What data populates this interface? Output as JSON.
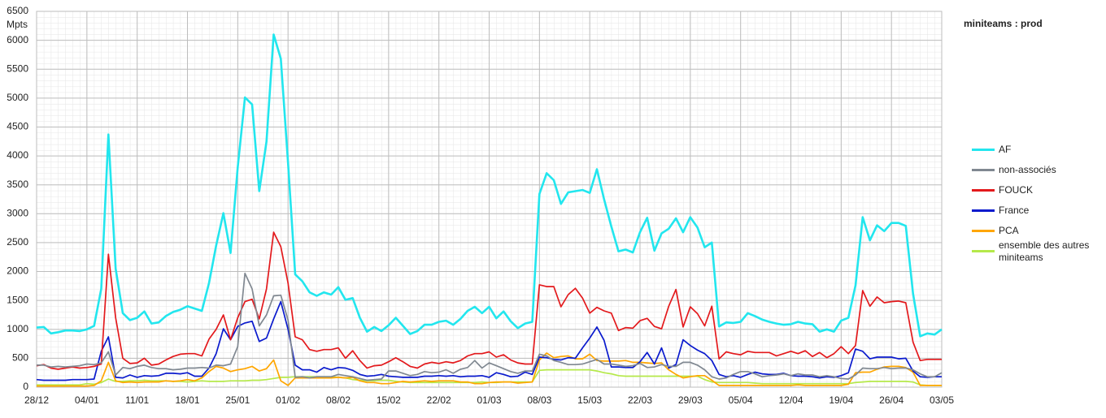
{
  "chart_data": {
    "type": "line",
    "title": "miniteams : prod",
    "y_label": "Mpts",
    "categories": [
      "28/12",
      null,
      null,
      null,
      null,
      null,
      null,
      "04/01",
      null,
      null,
      null,
      null,
      null,
      null,
      "11/01",
      null,
      null,
      null,
      null,
      null,
      null,
      "18/01",
      null,
      null,
      null,
      null,
      null,
      null,
      "25/01",
      null,
      null,
      null,
      null,
      null,
      null,
      "01/02",
      null,
      null,
      null,
      null,
      null,
      null,
      "08/02",
      null,
      null,
      null,
      null,
      null,
      null,
      "15/02",
      null,
      null,
      null,
      null,
      null,
      null,
      "22/02",
      null,
      null,
      null,
      null,
      null,
      null,
      "01/03",
      null,
      null,
      null,
      null,
      null,
      null,
      "08/03",
      null,
      null,
      null,
      null,
      null,
      null,
      "15/03",
      null,
      null,
      null,
      null,
      null,
      null,
      "22/03",
      null,
      null,
      null,
      null,
      null,
      null,
      "29/03",
      null,
      null,
      null,
      null,
      null,
      null,
      "05/04",
      null,
      null,
      null,
      null,
      null,
      null,
      "12/04",
      null,
      null,
      null,
      null,
      null,
      null,
      "19/04",
      null,
      null,
      null,
      null,
      null,
      null,
      "26/04",
      null,
      null,
      null,
      null,
      null,
      null,
      "03/05"
    ],
    "ylim": [
      0,
      6500
    ],
    "yticks": [
      0,
      500,
      1000,
      1500,
      2000,
      2500,
      3000,
      3500,
      4000,
      4500,
      5000,
      5500,
      6000,
      6500
    ],
    "grid": true,
    "series": [
      {
        "name": "AF",
        "color": "#22e6ee",
        "values": [
          1030,
          1040,
          930,
          950,
          980,
          980,
          970,
          1000,
          1060,
          1700,
          4370,
          2050,
          1280,
          1160,
          1200,
          1310,
          1100,
          1120,
          1230,
          1300,
          1340,
          1400,
          1360,
          1320,
          1800,
          2450,
          3010,
          2320,
          3800,
          5010,
          4890,
          3390,
          4250,
          6100,
          5680,
          3880,
          1950,
          1830,
          1640,
          1580,
          1640,
          1600,
          1730,
          1510,
          1540,
          1200,
          960,
          1040,
          970,
          1070,
          1200,
          1060,
          920,
          970,
          1080,
          1080,
          1130,
          1150,
          1080,
          1180,
          1320,
          1390,
          1280,
          1390,
          1190,
          1310,
          1140,
          1020,
          1100,
          1130,
          3340,
          3700,
          3580,
          3170,
          3370,
          3390,
          3410,
          3360,
          3770,
          3250,
          2780,
          2350,
          2380,
          2330,
          2680,
          2930,
          2360,
          2660,
          2740,
          2920,
          2680,
          2940,
          2760,
          2420,
          2500,
          1050,
          1120,
          1110,
          1130,
          1280,
          1230,
          1170,
          1130,
          1100,
          1080,
          1090,
          1130,
          1100,
          1090,
          960,
          1000,
          960,
          1150,
          1200,
          1760,
          2940,
          2540,
          2800,
          2700,
          2840,
          2840,
          2790,
          1620,
          880,
          930,
          910,
          1000
        ]
      },
      {
        "name": "non-associés",
        "color": "#808891",
        "values": [
          380,
          380,
          350,
          360,
          350,
          360,
          370,
          400,
          390,
          420,
          610,
          210,
          340,
          320,
          360,
          380,
          340,
          320,
          320,
          300,
          310,
          330,
          330,
          340,
          330,
          380,
          370,
          400,
          700,
          1970,
          1700,
          1060,
          1250,
          1580,
          1590,
          1160,
          170,
          180,
          160,
          180,
          180,
          180,
          220,
          200,
          180,
          150,
          120,
          130,
          140,
          280,
          280,
          240,
          200,
          220,
          270,
          250,
          260,
          300,
          240,
          310,
          340,
          460,
          330,
          420,
          370,
          320,
          270,
          240,
          280,
          280,
          570,
          540,
          460,
          430,
          390,
          390,
          400,
          440,
          480,
          400,
          400,
          380,
          360,
          370,
          410,
          340,
          350,
          390,
          360,
          360,
          430,
          430,
          380,
          300,
          180,
          140,
          160,
          220,
          270,
          270,
          230,
          180,
          200,
          210,
          230,
          200,
          230,
          210,
          210,
          180,
          200,
          180,
          150,
          140,
          210,
          330,
          320,
          320,
          340,
          320,
          330,
          330,
          300,
          230,
          180,
          180,
          250
        ]
      },
      {
        "name": "FOUCK",
        "color": "#e3191c",
        "values": [
          370,
          390,
          330,
          310,
          330,
          350,
          330,
          340,
          360,
          400,
          2300,
          1200,
          500,
          410,
          420,
          500,
          380,
          400,
          470,
          530,
          570,
          580,
          580,
          540,
          830,
          1000,
          1250,
          820,
          1200,
          1480,
          1520,
          1180,
          1700,
          2680,
          2430,
          1800,
          870,
          820,
          650,
          620,
          650,
          650,
          680,
          500,
          630,
          460,
          330,
          370,
          380,
          440,
          510,
          440,
          360,
          330,
          400,
          430,
          410,
          440,
          420,
          460,
          540,
          580,
          580,
          610,
          520,
          560,
          470,
          420,
          400,
          400,
          1770,
          1740,
          1740,
          1390,
          1600,
          1710,
          1540,
          1280,
          1380,
          1320,
          1280,
          980,
          1030,
          1020,
          1150,
          1190,
          1050,
          1010,
          1400,
          1690,
          1040,
          1390,
          1270,
          1060,
          1400,
          490,
          610,
          580,
          560,
          620,
          600,
          600,
          600,
          540,
          580,
          620,
          580,
          630,
          530,
          600,
          510,
          580,
          700,
          580,
          720,
          1670,
          1400,
          1560,
          1460,
          1480,
          1490,
          1460,
          780,
          460,
          480,
          480,
          480
        ]
      },
      {
        "name": "France",
        "color": "#0a1acd",
        "values": [
          130,
          120,
          120,
          120,
          120,
          130,
          130,
          130,
          140,
          620,
          870,
          170,
          160,
          210,
          170,
          200,
          190,
          200,
          240,
          240,
          230,
          250,
          190,
          190,
          330,
          580,
          1010,
          820,
          1050,
          1110,
          1140,
          790,
          850,
          1180,
          1480,
          1000,
          380,
          300,
          300,
          260,
          340,
          300,
          340,
          330,
          290,
          220,
          190,
          200,
          220,
          190,
          180,
          170,
          170,
          170,
          190,
          190,
          200,
          190,
          200,
          180,
          190,
          190,
          200,
          170,
          250,
          220,
          180,
          190,
          260,
          220,
          520,
          510,
          480,
          470,
          510,
          500,
          680,
          850,
          1040,
          810,
          350,
          350,
          340,
          340,
          440,
          600,
          400,
          680,
          330,
          390,
          820,
          720,
          640,
          580,
          460,
          220,
          180,
          200,
          170,
          220,
          260,
          230,
          220,
          220,
          240,
          200,
          190,
          190,
          180,
          160,
          180,
          170,
          200,
          250,
          660,
          620,
          490,
          520,
          520,
          520,
          490,
          500,
          280,
          180,
          170,
          180,
          180
        ]
      },
      {
        "name": "PCA",
        "color": "#ffa600",
        "values": [
          20,
          20,
          20,
          20,
          20,
          20,
          20,
          20,
          30,
          110,
          430,
          110,
          80,
          90,
          80,
          90,
          90,
          90,
          110,
          100,
          110,
          130,
          110,
          160,
          270,
          360,
          330,
          270,
          300,
          320,
          360,
          280,
          320,
          470,
          110,
          30,
          160,
          160,
          160,
          160,
          160,
          160,
          170,
          160,
          170,
          110,
          80,
          80,
          60,
          60,
          80,
          100,
          90,
          100,
          110,
          100,
          110,
          110,
          110,
          90,
          90,
          60,
          60,
          80,
          90,
          90,
          90,
          70,
          80,
          90,
          470,
          590,
          510,
          530,
          540,
          490,
          490,
          570,
          460,
          450,
          450,
          450,
          460,
          430,
          430,
          420,
          410,
          420,
          300,
          220,
          160,
          180,
          200,
          200,
          120,
          30,
          30,
          30,
          30,
          30,
          30,
          30,
          30,
          30,
          30,
          30,
          40,
          30,
          30,
          30,
          30,
          30,
          30,
          50,
          250,
          260,
          260,
          310,
          350,
          360,
          360,
          340,
          260,
          30,
          30,
          30,
          30
        ]
      },
      {
        "name": "ensemble des autres miniteams",
        "color": "#b5e94a",
        "values": [
          40,
          40,
          40,
          40,
          40,
          40,
          40,
          60,
          50,
          80,
          140,
          100,
          100,
          110,
          110,
          120,
          110,
          110,
          110,
          100,
          100,
          90,
          100,
          110,
          100,
          100,
          100,
          110,
          110,
          110,
          120,
          120,
          130,
          150,
          170,
          170,
          180,
          180,
          180,
          180,
          180,
          180,
          170,
          160,
          130,
          120,
          110,
          110,
          120,
          120,
          100,
          90,
          80,
          80,
          80,
          80,
          80,
          80,
          80,
          80,
          80,
          80,
          90,
          80,
          80,
          90,
          90,
          90,
          90,
          90,
          290,
          300,
          300,
          300,
          300,
          300,
          300,
          300,
          280,
          250,
          230,
          200,
          190,
          190,
          190,
          190,
          190,
          190,
          190,
          190,
          190,
          190,
          190,
          130,
          90,
          80,
          80,
          80,
          80,
          80,
          70,
          60,
          60,
          60,
          60,
          60,
          60,
          60,
          60,
          60,
          60,
          60,
          60,
          60,
          80,
          90,
          100,
          100,
          100,
          100,
          100,
          100,
          90,
          40,
          30,
          30,
          30
        ]
      }
    ]
  }
}
